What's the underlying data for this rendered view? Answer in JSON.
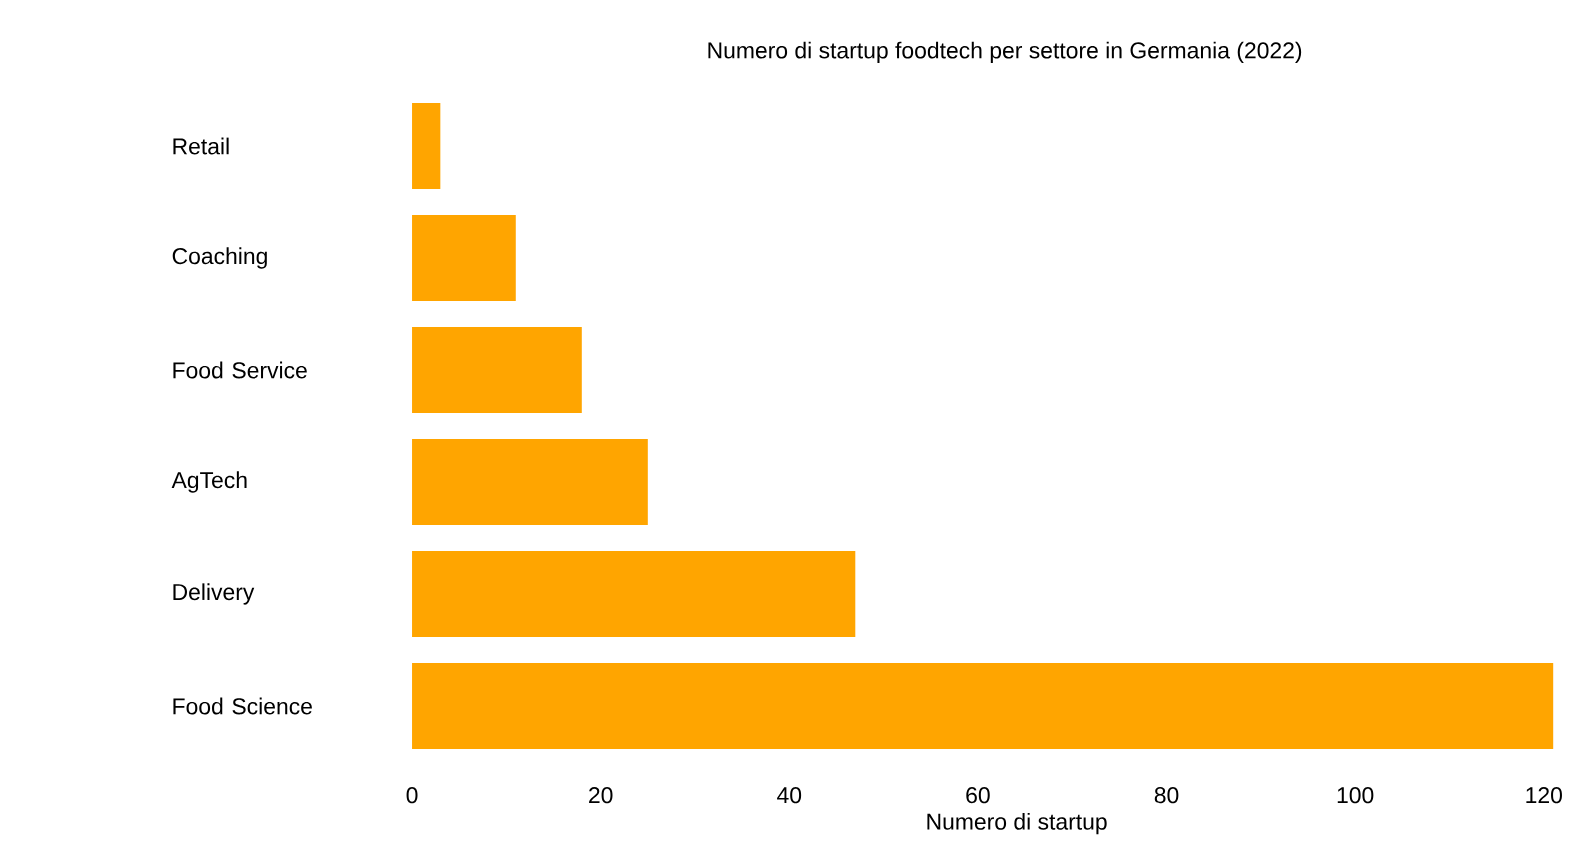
{
  "chart_data": {
    "type": "bar",
    "orientation": "horizontal",
    "title": "Numero di startup foodtech per settore in Germania (2022)",
    "xlabel": "Numero di startup",
    "categories": [
      "Retail",
      "Coaching",
      "Food Service",
      "AgTech",
      "Delivery",
      "Food Science"
    ],
    "values": [
      3,
      11,
      18,
      25,
      47,
      121
    ],
    "color": "#ffa500",
    "xlim": [
      -1,
      122
    ],
    "xticks": [
      0,
      20,
      40,
      60,
      80,
      100,
      120
    ],
    "grid": false
  }
}
